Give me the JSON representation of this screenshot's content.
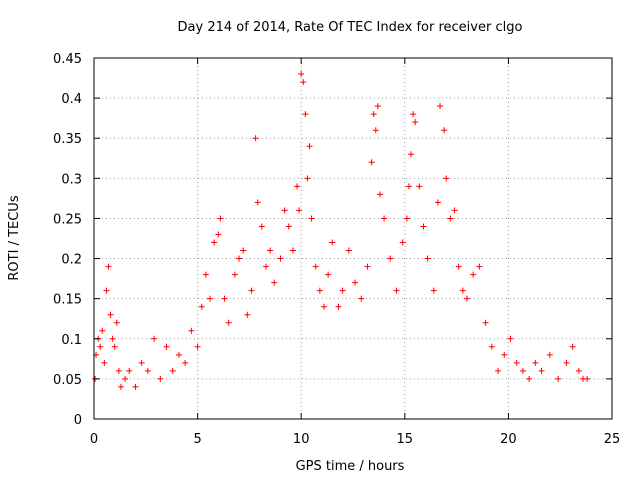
{
  "chart_data": {
    "type": "scatter",
    "title": "Day 214 of 2014, Rate Of TEC Index for receiver clgo",
    "xlabel": "GPS time / hours",
    "ylabel": "ROTI / TECUs",
    "xlim": [
      0,
      25
    ],
    "ylim": [
      0,
      0.45
    ],
    "x_ticks": [
      0,
      5,
      10,
      15,
      20,
      25
    ],
    "x_tick_labels": [
      "0",
      "5",
      "10",
      "15",
      "20",
      "25"
    ],
    "y_ticks": [
      0,
      0.05,
      0.1,
      0.15,
      0.2,
      0.25,
      0.3,
      0.35,
      0.4,
      0.45
    ],
    "y_tick_labels": [
      "0",
      "0.05",
      "0.1",
      "0.15",
      "0.2",
      "0.25",
      "0.3",
      "0.35",
      "0.4",
      "0.45"
    ],
    "grid": true,
    "marker": "+",
    "series": [
      {
        "name": "ROTI",
        "color": "#ff0000",
        "x": [
          0.05,
          0.1,
          0.2,
          0.3,
          0.4,
          0.5,
          0.6,
          0.7,
          0.8,
          0.9,
          1.0,
          1.1,
          1.2,
          1.3,
          1.5,
          1.7,
          2.0,
          2.3,
          2.6,
          2.9,
          3.2,
          3.5,
          3.8,
          4.1,
          4.4,
          4.7,
          5.0,
          5.2,
          5.4,
          5.6,
          5.8,
          6.0,
          6.1,
          6.3,
          6.5,
          6.8,
          7.0,
          7.2,
          7.4,
          7.6,
          7.8,
          7.9,
          8.1,
          8.3,
          8.5,
          8.7,
          9.0,
          9.2,
          9.4,
          9.6,
          9.8,
          9.9,
          10.0,
          10.1,
          10.2,
          10.3,
          10.4,
          10.5,
          10.7,
          10.9,
          11.1,
          11.3,
          11.5,
          11.8,
          12.0,
          12.3,
          12.6,
          12.9,
          13.2,
          13.4,
          13.5,
          13.6,
          13.7,
          13.8,
          14.0,
          14.3,
          14.6,
          14.9,
          15.1,
          15.2,
          15.3,
          15.4,
          15.5,
          15.7,
          15.9,
          16.1,
          16.4,
          16.6,
          16.7,
          16.9,
          17.0,
          17.2,
          17.4,
          17.6,
          17.8,
          18.0,
          18.3,
          18.6,
          18.9,
          19.2,
          19.5,
          19.8,
          20.1,
          20.4,
          20.7,
          21.0,
          21.3,
          21.6,
          22.0,
          22.4,
          22.8,
          23.1,
          23.4,
          23.6,
          23.8
        ],
        "y": [
          0.05,
          0.08,
          0.1,
          0.09,
          0.11,
          0.07,
          0.16,
          0.19,
          0.13,
          0.1,
          0.09,
          0.12,
          0.06,
          0.04,
          0.05,
          0.06,
          0.04,
          0.07,
          0.06,
          0.1,
          0.05,
          0.09,
          0.06,
          0.08,
          0.07,
          0.11,
          0.09,
          0.14,
          0.18,
          0.15,
          0.22,
          0.23,
          0.25,
          0.15,
          0.12,
          0.18,
          0.2,
          0.21,
          0.13,
          0.16,
          0.35,
          0.27,
          0.24,
          0.19,
          0.21,
          0.17,
          0.2,
          0.26,
          0.24,
          0.21,
          0.29,
          0.26,
          0.43,
          0.42,
          0.38,
          0.3,
          0.34,
          0.25,
          0.19,
          0.16,
          0.14,
          0.18,
          0.22,
          0.14,
          0.16,
          0.21,
          0.17,
          0.15,
          0.19,
          0.32,
          0.38,
          0.36,
          0.39,
          0.28,
          0.25,
          0.2,
          0.16,
          0.22,
          0.25,
          0.29,
          0.33,
          0.38,
          0.37,
          0.29,
          0.24,
          0.2,
          0.16,
          0.27,
          0.39,
          0.36,
          0.3,
          0.25,
          0.26,
          0.19,
          0.16,
          0.15,
          0.18,
          0.19,
          0.12,
          0.09,
          0.06,
          0.08,
          0.1,
          0.07,
          0.06,
          0.05,
          0.07,
          0.06,
          0.08,
          0.05,
          0.07,
          0.09,
          0.06,
          0.05,
          0.05
        ]
      }
    ]
  }
}
